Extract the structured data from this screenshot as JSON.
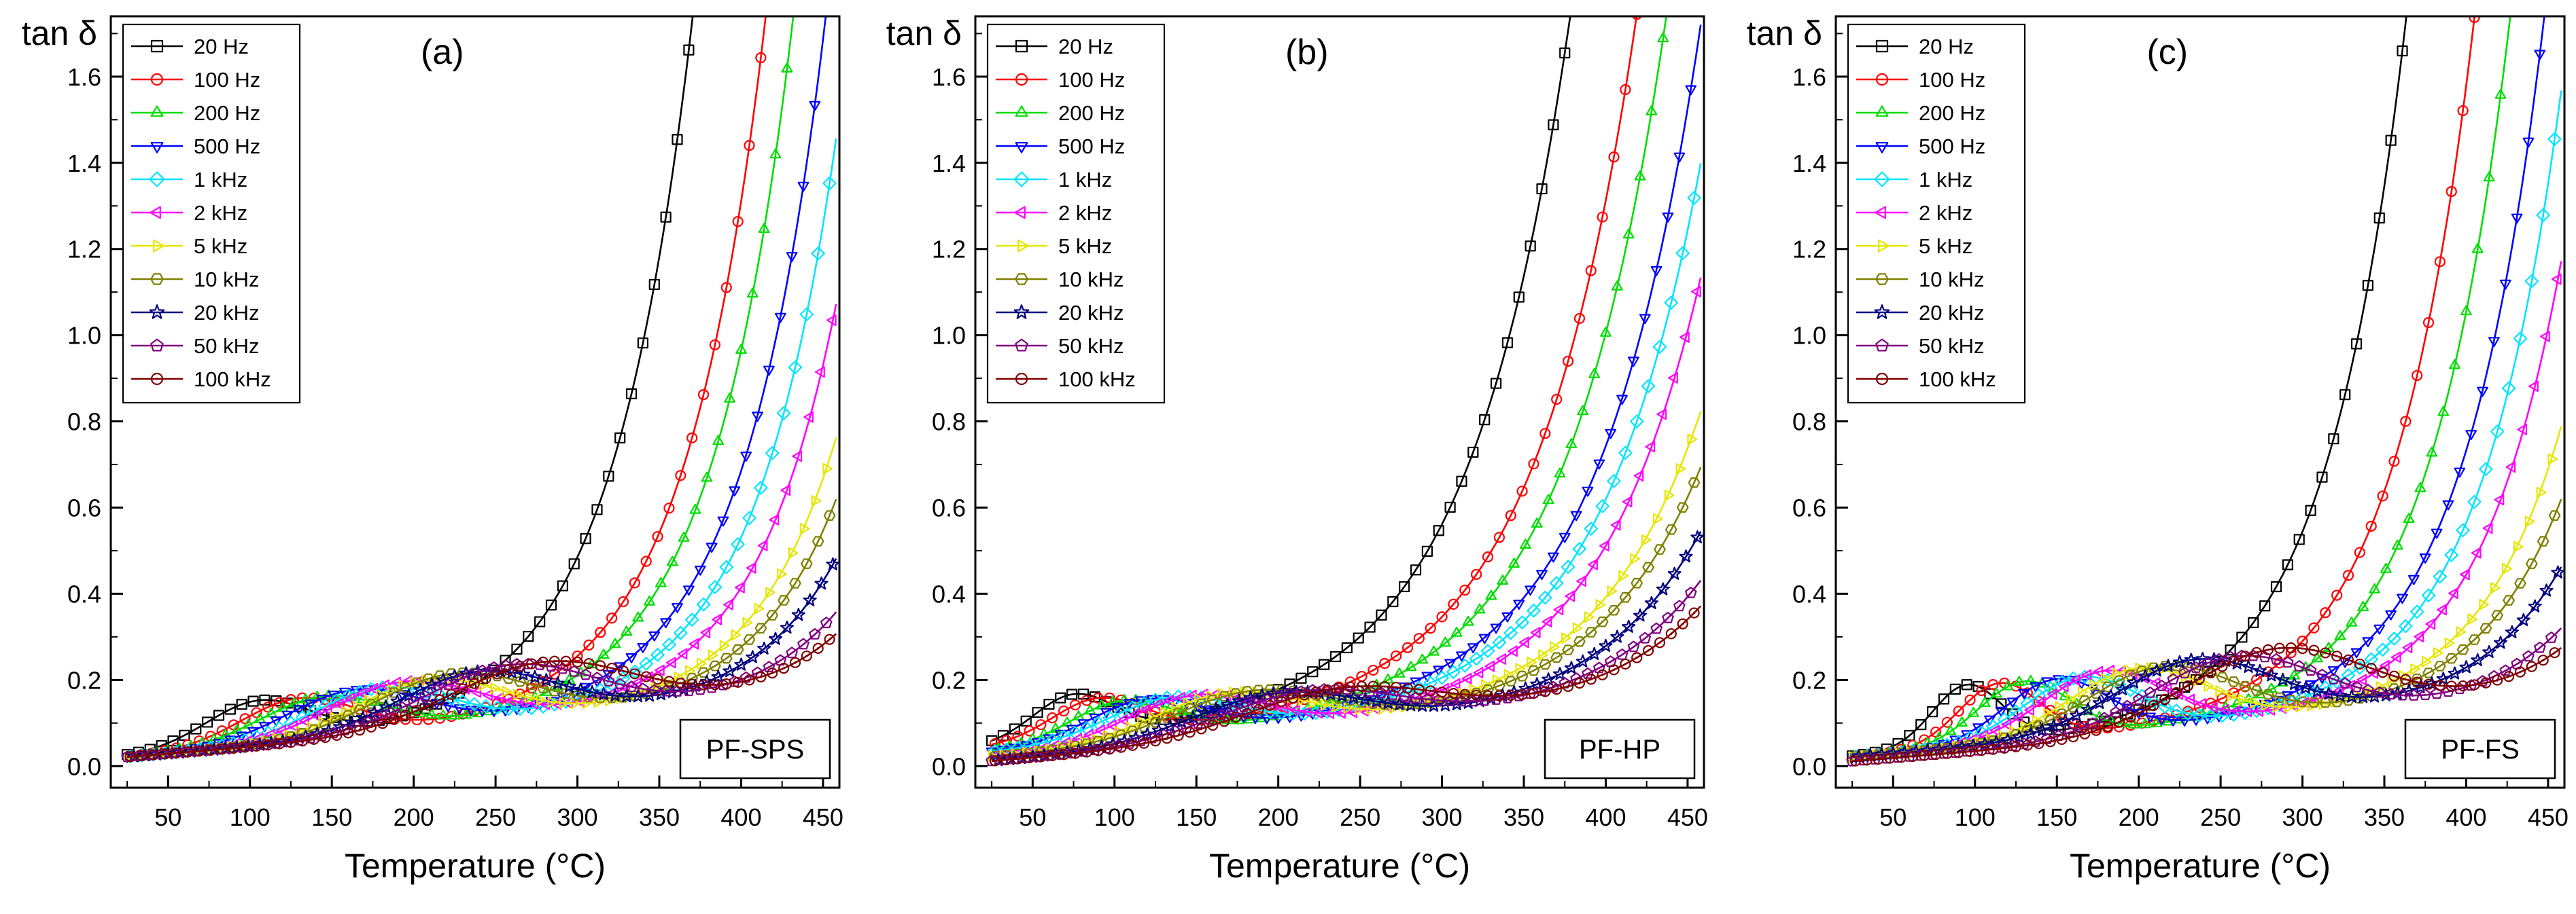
{
  "chart_data": [
    {
      "type": "line",
      "panel_label": "(a)",
      "sample": "PF-SPS",
      "xlabel": "Temperature (°C)",
      "ylabel": "tan δ",
      "xlim": [
        15,
        460
      ],
      "ylim": [
        -0.05,
        1.74
      ],
      "xticks": [
        50,
        100,
        150,
        200,
        250,
        300,
        350,
        400,
        450
      ],
      "yticks": [
        0.0,
        0.2,
        0.4,
        0.6,
        0.8,
        1.0,
        1.2,
        1.4,
        1.6
      ],
      "legend_position": "top-left",
      "series": [
        {
          "name": "20 Hz",
          "color": "#000000",
          "marker": "square",
          "knee": 190,
          "k": 0.0205,
          "base": 0.02,
          "peak": {
            "T": 105,
            "A": 0.1,
            "w": 45
          }
        },
        {
          "name": "100 Hz",
          "color": "#ff0000",
          "marker": "circle",
          "knee": 235,
          "k": 0.0205,
          "base": 0.02,
          "peak": {
            "T": 130,
            "A": 0.1,
            "w": 50
          }
        },
        {
          "name": "200 Hz",
          "color": "#00dd00",
          "marker": "triangle-up",
          "knee": 252,
          "k": 0.0205,
          "base": 0.02,
          "peak": {
            "T": 145,
            "A": 0.1,
            "w": 55
          }
        },
        {
          "name": "500 Hz",
          "color": "#0000ff",
          "marker": "triangle-down",
          "knee": 272,
          "k": 0.0205,
          "base": 0.02,
          "peak": {
            "T": 165,
            "A": 0.11,
            "w": 60
          }
        },
        {
          "name": "1 kHz",
          "color": "#00e5ff",
          "marker": "diamond",
          "knee": 288,
          "k": 0.0205,
          "base": 0.02,
          "peak": {
            "T": 180,
            "A": 0.11,
            "w": 60
          }
        },
        {
          "name": "2 kHz",
          "color": "#ff00ff",
          "marker": "triangle-left",
          "knee": 305,
          "k": 0.0205,
          "base": 0.02,
          "peak": {
            "T": 195,
            "A": 0.12,
            "w": 65
          }
        },
        {
          "name": "5 kHz",
          "color": "#e6e600",
          "marker": "triangle-right",
          "knee": 325,
          "k": 0.0205,
          "base": 0.02,
          "peak": {
            "T": 210,
            "A": 0.12,
            "w": 65
          }
        },
        {
          "name": "10 kHz",
          "color": "#808000",
          "marker": "hexagon",
          "knee": 338,
          "k": 0.0205,
          "base": 0.02,
          "peak": {
            "T": 225,
            "A": 0.13,
            "w": 70
          }
        },
        {
          "name": "20 kHz",
          "color": "#000080",
          "marker": "star",
          "knee": 355,
          "k": 0.0205,
          "base": 0.02,
          "peak": {
            "T": 240,
            "A": 0.13,
            "w": 70
          }
        },
        {
          "name": "50 kHz",
          "color": "#800080",
          "marker": "pentagon",
          "knee": 378,
          "k": 0.0205,
          "base": 0.02,
          "peak": {
            "T": 260,
            "A": 0.14,
            "w": 75
          }
        },
        {
          "name": "100 kHz",
          "color": "#800000",
          "marker": "circle-dot",
          "knee": 392,
          "k": 0.0205,
          "base": 0.02,
          "peak": {
            "T": 280,
            "A": 0.14,
            "w": 80
          }
        }
      ]
    },
    {
      "type": "line",
      "panel_label": "(b)",
      "sample": "PF-HP",
      "xlabel": "Temperature (°C)",
      "ylabel": "tan δ",
      "xlim": [
        15,
        460
      ],
      "ylim": [
        -0.05,
        1.74
      ],
      "xticks": [
        50,
        100,
        150,
        200,
        250,
        300,
        350,
        400,
        450
      ],
      "yticks": [
        0.0,
        0.2,
        0.4,
        0.6,
        0.8,
        1.0,
        1.2,
        1.4,
        1.6
      ],
      "legend_position": "top-left",
      "series": [
        {
          "name": "20 Hz",
          "color": "#000000",
          "marker": "square",
          "knee": 155,
          "k": 0.0165,
          "base": 0.04,
          "peak": {
            "T": 75,
            "A": 0.1,
            "w": 35
          }
        },
        {
          "name": "100 Hz",
          "color": "#ff0000",
          "marker": "circle",
          "knee": 196,
          "k": 0.0165,
          "base": 0.04,
          "peak": {
            "T": 90,
            "A": 0.09,
            "w": 40
          }
        },
        {
          "name": "200 Hz",
          "color": "#00dd00",
          "marker": "triangle-up",
          "knee": 214,
          "k": 0.0165,
          "base": 0.03,
          "peak": {
            "T": 105,
            "A": 0.09,
            "w": 45
          }
        },
        {
          "name": "500 Hz",
          "color": "#0000ff",
          "marker": "triangle-down",
          "knee": 236,
          "k": 0.0165,
          "base": 0.03,
          "peak": {
            "T": 120,
            "A": 0.09,
            "w": 50
          }
        },
        {
          "name": "1 kHz",
          "color": "#00e5ff",
          "marker": "diamond",
          "knee": 250,
          "k": 0.0165,
          "base": 0.03,
          "peak": {
            "T": 135,
            "A": 0.09,
            "w": 55
          }
        },
        {
          "name": "2 kHz",
          "color": "#ff00ff",
          "marker": "triangle-left",
          "knee": 264,
          "k": 0.0165,
          "base": 0.02,
          "peak": {
            "T": 150,
            "A": 0.1,
            "w": 60
          }
        },
        {
          "name": "5 kHz",
          "color": "#e6e600",
          "marker": "triangle-right",
          "knee": 287,
          "k": 0.0165,
          "base": 0.02,
          "peak": {
            "T": 170,
            "A": 0.1,
            "w": 65
          }
        },
        {
          "name": "10 kHz",
          "color": "#808000",
          "marker": "hexagon",
          "knee": 300,
          "k": 0.0165,
          "base": 0.02,
          "peak": {
            "T": 185,
            "A": 0.1,
            "w": 70
          }
        },
        {
          "name": "20 kHz",
          "color": "#000080",
          "marker": "star",
          "knee": 318,
          "k": 0.0165,
          "base": 0.01,
          "peak": {
            "T": 200,
            "A": 0.1,
            "w": 75
          }
        },
        {
          "name": "50 kHz",
          "color": "#800080",
          "marker": "pentagon",
          "knee": 338,
          "k": 0.0165,
          "base": 0.01,
          "peak": {
            "T": 220,
            "A": 0.1,
            "w": 80
          }
        },
        {
          "name": "100 kHz",
          "color": "#800000",
          "marker": "circle-dot",
          "knee": 352,
          "k": 0.0165,
          "base": 0.01,
          "peak": {
            "T": 240,
            "A": 0.1,
            "w": 85
          }
        }
      ]
    },
    {
      "type": "line",
      "panel_label": "(c)",
      "sample": "PF-FS",
      "xlabel": "Temperature (°C)",
      "ylabel": "tan δ",
      "xlim": [
        15,
        460
      ],
      "ylim": [
        -0.05,
        1.74
      ],
      "xticks": [
        50,
        100,
        150,
        200,
        250,
        300,
        350,
        400,
        450
      ],
      "yticks": [
        0.0,
        0.2,
        0.4,
        0.6,
        0.8,
        1.0,
        1.2,
        1.4,
        1.6
      ],
      "legend_position": "top-left",
      "series": [
        {
          "name": "20 Hz",
          "color": "#000000",
          "marker": "square",
          "knee": 183,
          "k": 0.0205,
          "base": 0.02,
          "peak": {
            "T": 95,
            "A": 0.14,
            "w": 30
          }
        },
        {
          "name": "100 Hz",
          "color": "#ff0000",
          "marker": "circle",
          "knee": 225,
          "k": 0.0205,
          "base": 0.02,
          "peak": {
            "T": 115,
            "A": 0.14,
            "w": 35
          }
        },
        {
          "name": "200 Hz",
          "color": "#00dd00",
          "marker": "triangle-up",
          "knee": 247,
          "k": 0.0205,
          "base": 0.02,
          "peak": {
            "T": 130,
            "A": 0.14,
            "w": 40
          }
        },
        {
          "name": "500 Hz",
          "color": "#0000ff",
          "marker": "triangle-down",
          "knee": 268,
          "k": 0.0205,
          "base": 0.02,
          "peak": {
            "T": 150,
            "A": 0.14,
            "w": 45
          }
        },
        {
          "name": "1 kHz",
          "color": "#00e5ff",
          "marker": "diamond",
          "knee": 284,
          "k": 0.0205,
          "base": 0.02,
          "peak": {
            "T": 165,
            "A": 0.14,
            "w": 50
          }
        },
        {
          "name": "2 kHz",
          "color": "#ff00ff",
          "marker": "triangle-left",
          "knee": 300,
          "k": 0.0205,
          "base": 0.02,
          "peak": {
            "T": 180,
            "A": 0.15,
            "w": 55
          }
        },
        {
          "name": "5 kHz",
          "color": "#e6e600",
          "marker": "triangle-right",
          "knee": 323,
          "k": 0.0205,
          "base": 0.02,
          "peak": {
            "T": 200,
            "A": 0.15,
            "w": 60
          }
        },
        {
          "name": "10 kHz",
          "color": "#808000",
          "marker": "hexagon",
          "knee": 338,
          "k": 0.0205,
          "base": 0.02,
          "peak": {
            "T": 215,
            "A": 0.15,
            "w": 65
          }
        },
        {
          "name": "20 kHz",
          "color": "#000080",
          "marker": "star",
          "knee": 358,
          "k": 0.0205,
          "base": 0.02,
          "peak": {
            "T": 235,
            "A": 0.16,
            "w": 70
          }
        },
        {
          "name": "50 kHz",
          "color": "#800080",
          "marker": "pentagon",
          "knee": 385,
          "k": 0.0205,
          "base": 0.01,
          "peak": {
            "T": 260,
            "A": 0.17,
            "w": 75
          }
        },
        {
          "name": "100 kHz",
          "color": "#800000",
          "marker": "circle-dot",
          "knee": 400,
          "k": 0.0205,
          "base": 0.01,
          "peak": {
            "T": 285,
            "A": 0.18,
            "w": 80
          }
        }
      ]
    }
  ]
}
